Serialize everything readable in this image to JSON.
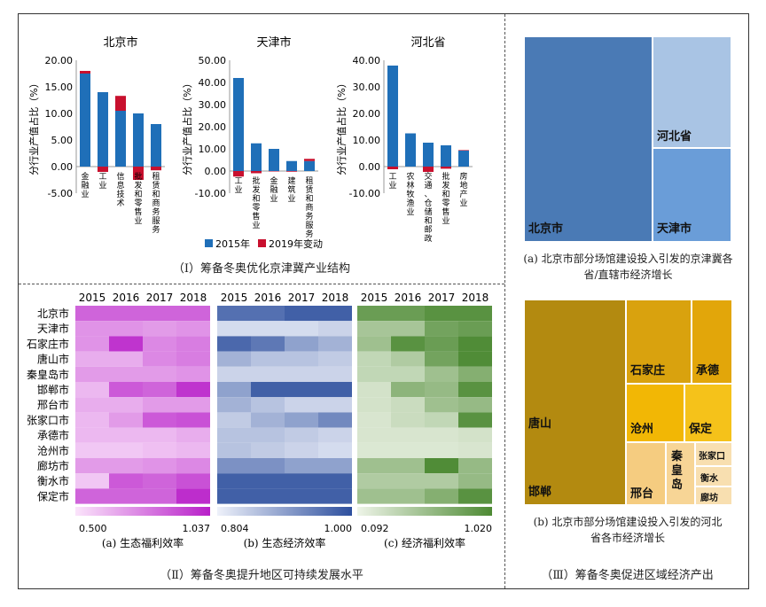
{
  "panel1": {
    "caption": "（Ⅰ）筹备冬奥优化京津冀产业结构",
    "ylabel": "分行业产值占比（%）",
    "legend": {
      "s2015": "2015年",
      "s2019": "2019年变动"
    },
    "colors": {
      "s2015": "#1f6fb8",
      "s2019": "#c8102e"
    },
    "charts": [
      {
        "title": "北京市",
        "yticks": [
          "20.00",
          "15.00",
          "10.00",
          "5.00",
          "0.00",
          "-5.00"
        ],
        "ymin": -5,
        "ymax": 20,
        "categories": [
          "金融业",
          "工业",
          "信息技术",
          "批发和零售业",
          "租赁和商务服务"
        ],
        "values2015": [
          17.5,
          14.0,
          10.5,
          10.0,
          8.0
        ],
        "change2019": [
          0.5,
          -1.0,
          2.8,
          -2.5,
          -0.7
        ]
      },
      {
        "title": "天津市",
        "yticks": [
          "50.00",
          "40.00",
          "30.00",
          "20.00",
          "10.00",
          "0.00",
          "-10.00"
        ],
        "ymin": -10,
        "ymax": 50,
        "categories": [
          "工业",
          "批发和零售业",
          "金融业",
          "建筑业",
          "租赁和商务服务"
        ],
        "values2015": [
          42.0,
          12.5,
          10.0,
          4.5,
          4.5
        ],
        "change2019": [
          -2.5,
          -1.0,
          -0.2,
          -0.3,
          1.0
        ]
      },
      {
        "title": "河北省",
        "yticks": [
          "40.00",
          "30.00",
          "20.00",
          "10.00",
          "0.00",
          "-10.00"
        ],
        "ymin": -10,
        "ymax": 40,
        "categories": [
          "工业",
          "农林牧渔业",
          "交通、仓储和邮政",
          "批发和零售业",
          "房地产业"
        ],
        "values2015": [
          38.0,
          12.5,
          9.0,
          8.0,
          6.0
        ],
        "change2019": [
          -1.0,
          0.0,
          -2.0,
          -0.8,
          0.2
        ]
      }
    ]
  },
  "panel2": {
    "caption": "（Ⅱ）筹备冬奥提升地区可持续发展水平",
    "years": [
      "2015",
      "2016",
      "2017",
      "2018"
    ],
    "cities": [
      "北京市",
      "天津市",
      "石家庄市",
      "唐山市",
      "秦皇岛市",
      "邯郸市",
      "邢台市",
      "张家口市",
      "承德市",
      "沧州市",
      "廊坊市",
      "衡水市",
      "保定市"
    ],
    "heatmaps": [
      {
        "caption": "(a)  生态福利效率",
        "min_label": "0.500",
        "max_label": "1.037",
        "low_color": "#fbe4fb",
        "high_color": "#b81fc9",
        "values": [
          [
            0.85,
            0.85,
            0.85,
            0.85
          ],
          [
            0.72,
            0.72,
            0.7,
            0.72
          ],
          [
            0.72,
            0.98,
            0.75,
            0.78
          ],
          [
            0.65,
            0.65,
            0.75,
            0.78
          ],
          [
            0.7,
            0.7,
            0.7,
            0.72
          ],
          [
            0.62,
            0.88,
            0.85,
            0.98
          ],
          [
            0.65,
            0.65,
            0.7,
            0.7
          ],
          [
            0.62,
            0.7,
            0.88,
            0.9
          ],
          [
            0.62,
            0.62,
            0.62,
            0.65
          ],
          [
            0.58,
            0.58,
            0.6,
            0.62
          ],
          [
            0.7,
            0.7,
            0.72,
            0.75
          ],
          [
            0.58,
            0.88,
            0.85,
            0.9
          ],
          [
            0.85,
            0.85,
            0.85,
            1.0
          ]
        ]
      },
      {
        "caption": "(b)  生态经济效率",
        "min_label": "0.804",
        "max_label": "1.000",
        "low_color": "#eef1fa",
        "high_color": "#2d4f9e",
        "values": [
          [
            0.96,
            0.96,
            0.98,
            0.98
          ],
          [
            0.83,
            0.83,
            0.83,
            0.84
          ],
          [
            0.97,
            0.95,
            0.9,
            0.88
          ],
          [
            0.88,
            0.86,
            0.86,
            0.85
          ],
          [
            0.84,
            0.84,
            0.84,
            0.84
          ],
          [
            0.9,
            0.98,
            0.98,
            0.98
          ],
          [
            0.88,
            0.86,
            0.84,
            0.84
          ],
          [
            0.85,
            0.88,
            0.9,
            0.93
          ],
          [
            0.86,
            0.86,
            0.85,
            0.84
          ],
          [
            0.86,
            0.85,
            0.84,
            0.83
          ],
          [
            0.92,
            0.92,
            0.9,
            0.9
          ],
          [
            0.98,
            0.98,
            0.98,
            0.98
          ],
          [
            0.98,
            0.98,
            0.98,
            0.98
          ]
        ]
      },
      {
        "caption": "(c)  经济福利效率",
        "min_label": "0.092",
        "max_label": "1.020",
        "low_color": "#eef4e8",
        "high_color": "#4d8a33",
        "values": [
          [
            0.85,
            0.85,
            0.95,
            0.95
          ],
          [
            0.5,
            0.5,
            0.8,
            0.85
          ],
          [
            0.55,
            0.95,
            0.85,
            1.0
          ],
          [
            0.35,
            0.45,
            0.8,
            1.0
          ],
          [
            0.35,
            0.35,
            0.55,
            0.7
          ],
          [
            0.25,
            0.65,
            0.6,
            0.95
          ],
          [
            0.25,
            0.3,
            0.55,
            0.6
          ],
          [
            0.22,
            0.3,
            0.35,
            0.95
          ],
          [
            0.22,
            0.22,
            0.22,
            0.25
          ],
          [
            0.2,
            0.2,
            0.2,
            0.22
          ],
          [
            0.55,
            0.55,
            1.0,
            0.6
          ],
          [
            0.45,
            0.45,
            0.45,
            0.6
          ],
          [
            0.55,
            0.55,
            0.7,
            0.95
          ]
        ]
      }
    ]
  },
  "panel3": {
    "caption": "（Ⅲ）筹备冬奥促进区域经济产出",
    "treemap_a": {
      "caption": "(a)  北京市部分场馆建设投入引发的京津冀各省/直辖市经济增长",
      "labels": {
        "beijing": "北京市",
        "hebei": "河北省",
        "tianjin": "天津市"
      },
      "colors": {
        "beijing": "#4a7ab5",
        "hebei": "#a9c4e4",
        "tianjin": "#6a9dd8"
      }
    },
    "treemap_b": {
      "caption": "(b)  北京市部分场馆建设投入引发的河北省各市经济增长",
      "labels": {
        "tangshan": "唐山",
        "handan": "邯郸",
        "shijiazhuang": "石家庄",
        "chengde": "承德",
        "cangzhou": "沧州",
        "baoding": "保定",
        "xingtai": "邢台",
        "qinhuangdao": "秦皇岛",
        "zhangjiakou": "张家口",
        "hengshui": "衡水",
        "langfang": "廊坊"
      },
      "colors": {
        "dark": "#b38a10",
        "mid": "#d9a20e",
        "bright": "#f2b705",
        "light": "#f5cc80",
        "pale": "#f8dfb0"
      }
    }
  }
}
